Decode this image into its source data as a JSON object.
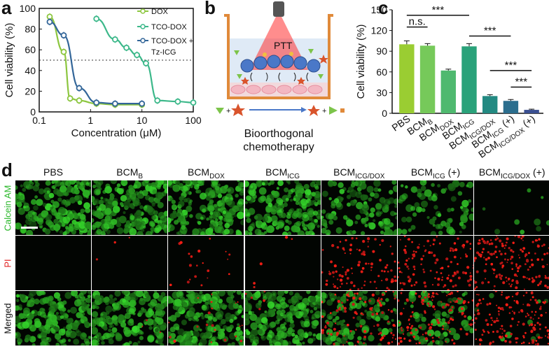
{
  "panels": {
    "a": "a",
    "b": "b",
    "c": "c",
    "d": "d"
  },
  "chart_data": [
    {
      "panel": "a",
      "type": "line",
      "xlabel": "Concentration (μM)",
      "ylabel": "Cell viability (%)",
      "xscale": "log",
      "xlim": [
        0.1,
        100
      ],
      "ylim": [
        0,
        100
      ],
      "xticks": [
        "0.1",
        "1",
        "10",
        "100"
      ],
      "yticks": [
        "0",
        "20",
        "40",
        "60",
        "80",
        "100"
      ],
      "reference_line": 50,
      "legend": [
        "DOX",
        "TCO-DOX",
        "TCO-DOX +",
        "Tz-ICG"
      ],
      "series": [
        {
          "name": "DOX",
          "color": "#8cc63f",
          "x": [
            0.16,
            0.3,
            0.4,
            0.6,
            1.3,
            3,
            10
          ],
          "y": [
            92,
            58,
            13,
            11,
            8,
            7,
            7
          ]
        },
        {
          "name": "TCO-DOX",
          "color": "#3cb88a",
          "x": [
            1.3,
            3,
            5,
            8,
            12,
            20,
            50,
            100
          ],
          "y": [
            90,
            70,
            62,
            55,
            47,
            11,
            10,
            9
          ]
        },
        {
          "name": "TCO-DOX + Tz-ICG",
          "color": "#336699",
          "x": [
            0.16,
            0.3,
            0.6,
            1.3,
            3,
            10
          ],
          "y": [
            87,
            74,
            23,
            9,
            8,
            8
          ]
        }
      ]
    },
    {
      "panel": "c",
      "type": "bar",
      "ylabel": "Cell viability (%)",
      "ylim": [
        0,
        150
      ],
      "yticks": [
        "0",
        "30",
        "60",
        "90",
        "120",
        "150"
      ],
      "categories": [
        "PBS",
        "BCM_B",
        "BCM_DOX",
        "BCM_ICG",
        "BCM_ICG/DOX",
        "BCM_ICG (+)",
        "BCM_ICG/DOX (+)"
      ],
      "values": [
        100,
        98,
        62,
        97,
        25,
        18,
        5
      ],
      "errors": [
        5,
        3,
        2,
        4,
        2,
        2,
        1
      ],
      "colors": [
        "#9acd32",
        "#76c95a",
        "#4fb96f",
        "#2aa27a",
        "#238a82",
        "#2b6e8e",
        "#3a4f91"
      ],
      "annotations": [
        "***",
        "n.s.",
        "***",
        "***",
        "***"
      ]
    }
  ],
  "panel_b": {
    "ptt_label": "PTT",
    "caption_line1": "Bioorthogonal",
    "caption_line2": "chemotherapy"
  },
  "panel_c_xlabels": [
    {
      "main": "PBS",
      "sub": "",
      "suffix": ""
    },
    {
      "main": "BCM",
      "sub": "B",
      "suffix": ""
    },
    {
      "main": "BCM",
      "sub": "DOX",
      "suffix": ""
    },
    {
      "main": "BCM",
      "sub": "ICG",
      "suffix": ""
    },
    {
      "main": "BCM",
      "sub": "ICG/DOX",
      "suffix": ""
    },
    {
      "main": "BCM",
      "sub": "ICG",
      "suffix": " (+)"
    },
    {
      "main": "BCM",
      "sub": "ICG/DOX",
      "suffix": " (+)"
    }
  ],
  "panel_d": {
    "columns": [
      {
        "main": "PBS",
        "sub": "",
        "suffix": ""
      },
      {
        "main": "BCM",
        "sub": "B",
        "suffix": ""
      },
      {
        "main": "BCM",
        "sub": "DOX",
        "suffix": ""
      },
      {
        "main": "BCM",
        "sub": "ICG",
        "suffix": ""
      },
      {
        "main": "BCM",
        "sub": "ICG/DOX",
        "suffix": ""
      },
      {
        "main": "BCM",
        "sub": "ICG",
        "suffix": " (+)"
      },
      {
        "main": "BCM",
        "sub": "ICG/DOX",
        "suffix": " (+)"
      }
    ],
    "rows": [
      {
        "label": "Calcein AM",
        "color": "#2db82d"
      },
      {
        "label": "PI",
        "color": "#e02020"
      },
      {
        "label": "Merged",
        "color": "#111111"
      }
    ],
    "green_level": [
      0.9,
      0.95,
      0.9,
      0.9,
      0.55,
      0.35,
      0.04
    ],
    "red_level": [
      0.0,
      0.02,
      0.12,
      0.03,
      0.55,
      0.7,
      0.95
    ]
  }
}
